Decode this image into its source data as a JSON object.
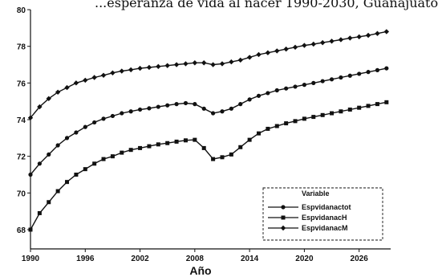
{
  "chart_data": {
    "type": "line",
    "title": "...esperanza de vida al nacer 1990-2030, Guanajuato",
    "xlabel": "Año",
    "ylabel": "",
    "xlim": [
      1990,
      2030
    ],
    "ylim": [
      68,
      80
    ],
    "x_ticks": [
      1990,
      1996,
      2002,
      2008,
      2014,
      2020,
      2026
    ],
    "y_ticks": [
      68,
      70,
      72,
      74,
      76,
      78,
      80
    ],
    "grid": false,
    "legend": {
      "title": "Variable",
      "position": "bottom-right"
    },
    "x": [
      1990,
      1991,
      1992,
      1993,
      1994,
      1995,
      1996,
      1997,
      1998,
      1999,
      2000,
      2001,
      2002,
      2003,
      2004,
      2005,
      2006,
      2007,
      2008,
      2009,
      2010,
      2011,
      2012,
      2013,
      2014,
      2015,
      2016,
      2017,
      2018,
      2019,
      2020,
      2021,
      2022,
      2023,
      2024,
      2025,
      2026,
      2027,
      2028,
      2029,
      2030
    ],
    "series": [
      {
        "name": "Espvidanactot",
        "marker": "circle",
        "values": [
          71.0,
          71.6,
          72.1,
          72.6,
          73.0,
          73.3,
          73.6,
          73.85,
          74.05,
          74.2,
          74.35,
          74.45,
          74.55,
          74.62,
          74.7,
          74.78,
          74.85,
          74.9,
          74.85,
          74.6,
          74.35,
          74.45,
          74.6,
          74.85,
          75.1,
          75.3,
          75.45,
          75.6,
          75.7,
          75.8,
          75.9,
          76.0,
          76.1,
          76.2,
          76.3,
          76.4,
          76.5,
          76.6,
          76.7,
          76.8,
          76.9
        ]
      },
      {
        "name": "EspvidanacH",
        "marker": "square",
        "values": [
          68.0,
          68.9,
          69.5,
          70.1,
          70.6,
          71.0,
          71.3,
          71.6,
          71.85,
          72.0,
          72.2,
          72.35,
          72.45,
          72.55,
          72.65,
          72.72,
          72.8,
          72.87,
          72.9,
          72.45,
          71.85,
          71.95,
          72.1,
          72.5,
          72.9,
          73.25,
          73.5,
          73.65,
          73.8,
          73.92,
          74.05,
          74.15,
          74.25,
          74.35,
          74.45,
          74.55,
          74.65,
          74.75,
          74.85,
          74.95,
          75.05
        ]
      },
      {
        "name": "EspvidanacM",
        "marker": "diamond",
        "values": [
          74.1,
          74.7,
          75.15,
          75.5,
          75.75,
          76.0,
          76.15,
          76.3,
          76.42,
          76.55,
          76.65,
          76.72,
          76.8,
          76.85,
          76.9,
          76.95,
          77.0,
          77.05,
          77.1,
          77.1,
          77.0,
          77.05,
          77.15,
          77.25,
          77.4,
          77.55,
          77.65,
          77.75,
          77.85,
          77.95,
          78.05,
          78.12,
          78.2,
          78.28,
          78.36,
          78.45,
          78.52,
          78.6,
          78.7,
          78.8,
          78.9
        ]
      }
    ]
  }
}
